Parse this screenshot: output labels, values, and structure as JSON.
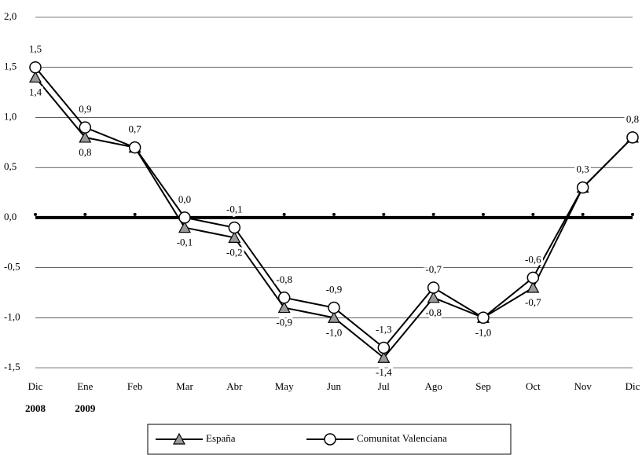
{
  "chart_data": {
    "type": "line",
    "categories": [
      "Dic",
      "Ene",
      "Feb",
      "Mar",
      "Abr",
      "May",
      "Jun",
      "Jul",
      "Ago",
      "Sep",
      "Oct",
      "Nov",
      "Dic"
    ],
    "category_years": [
      "2008",
      "2009",
      null,
      null,
      null,
      null,
      null,
      null,
      null,
      null,
      null,
      null,
      null
    ],
    "series": [
      {
        "name": "España",
        "color": "#000000",
        "marker": "triangle",
        "marker_fill": "#999999",
        "values": [
          1.4,
          0.8,
          0.7,
          -0.1,
          -0.2,
          -0.9,
          -1.0,
          -1.4,
          -0.8,
          -1.0,
          -0.7,
          0.3,
          0.8
        ],
        "value_labels": [
          "1,4",
          "0,8",
          null,
          "-0,1",
          "-0,2",
          "-0,9",
          "-1,0",
          "-1,4",
          "-0,8",
          "-1,0",
          "-0,7",
          null,
          null
        ]
      },
      {
        "name": "Comunitat Valenciana",
        "color": "#000000",
        "marker": "circle",
        "marker_fill": "#ffffff",
        "values": [
          1.5,
          0.9,
          0.7,
          0.0,
          -0.1,
          -0.8,
          -0.9,
          -1.3,
          -0.7,
          -1.0,
          -0.6,
          0.3,
          0.8
        ],
        "value_labels": [
          "1,5",
          "0,9",
          "0,7",
          "0,0",
          "-0,1",
          "-0,8",
          "-0,9",
          "-1,3",
          "-0,7",
          null,
          "-0,6",
          "0,3",
          "0,8"
        ]
      }
    ],
    "ylim": [
      -1.5,
      2.0
    ],
    "yticks": [
      {
        "value": -1.5,
        "label": "-1,5"
      },
      {
        "value": -1.0,
        "label": "-1,0"
      },
      {
        "value": -0.5,
        "label": "-0,5"
      },
      {
        "value": 0,
        "label": "0,0"
      },
      {
        "value": 0.5,
        "label": "0,5"
      },
      {
        "value": 1.0,
        "label": "1,0"
      },
      {
        "value": 1.5,
        "label": "1,5"
      },
      {
        "value": 2.0,
        "label": "2,0"
      }
    ],
    "grid": true
  }
}
